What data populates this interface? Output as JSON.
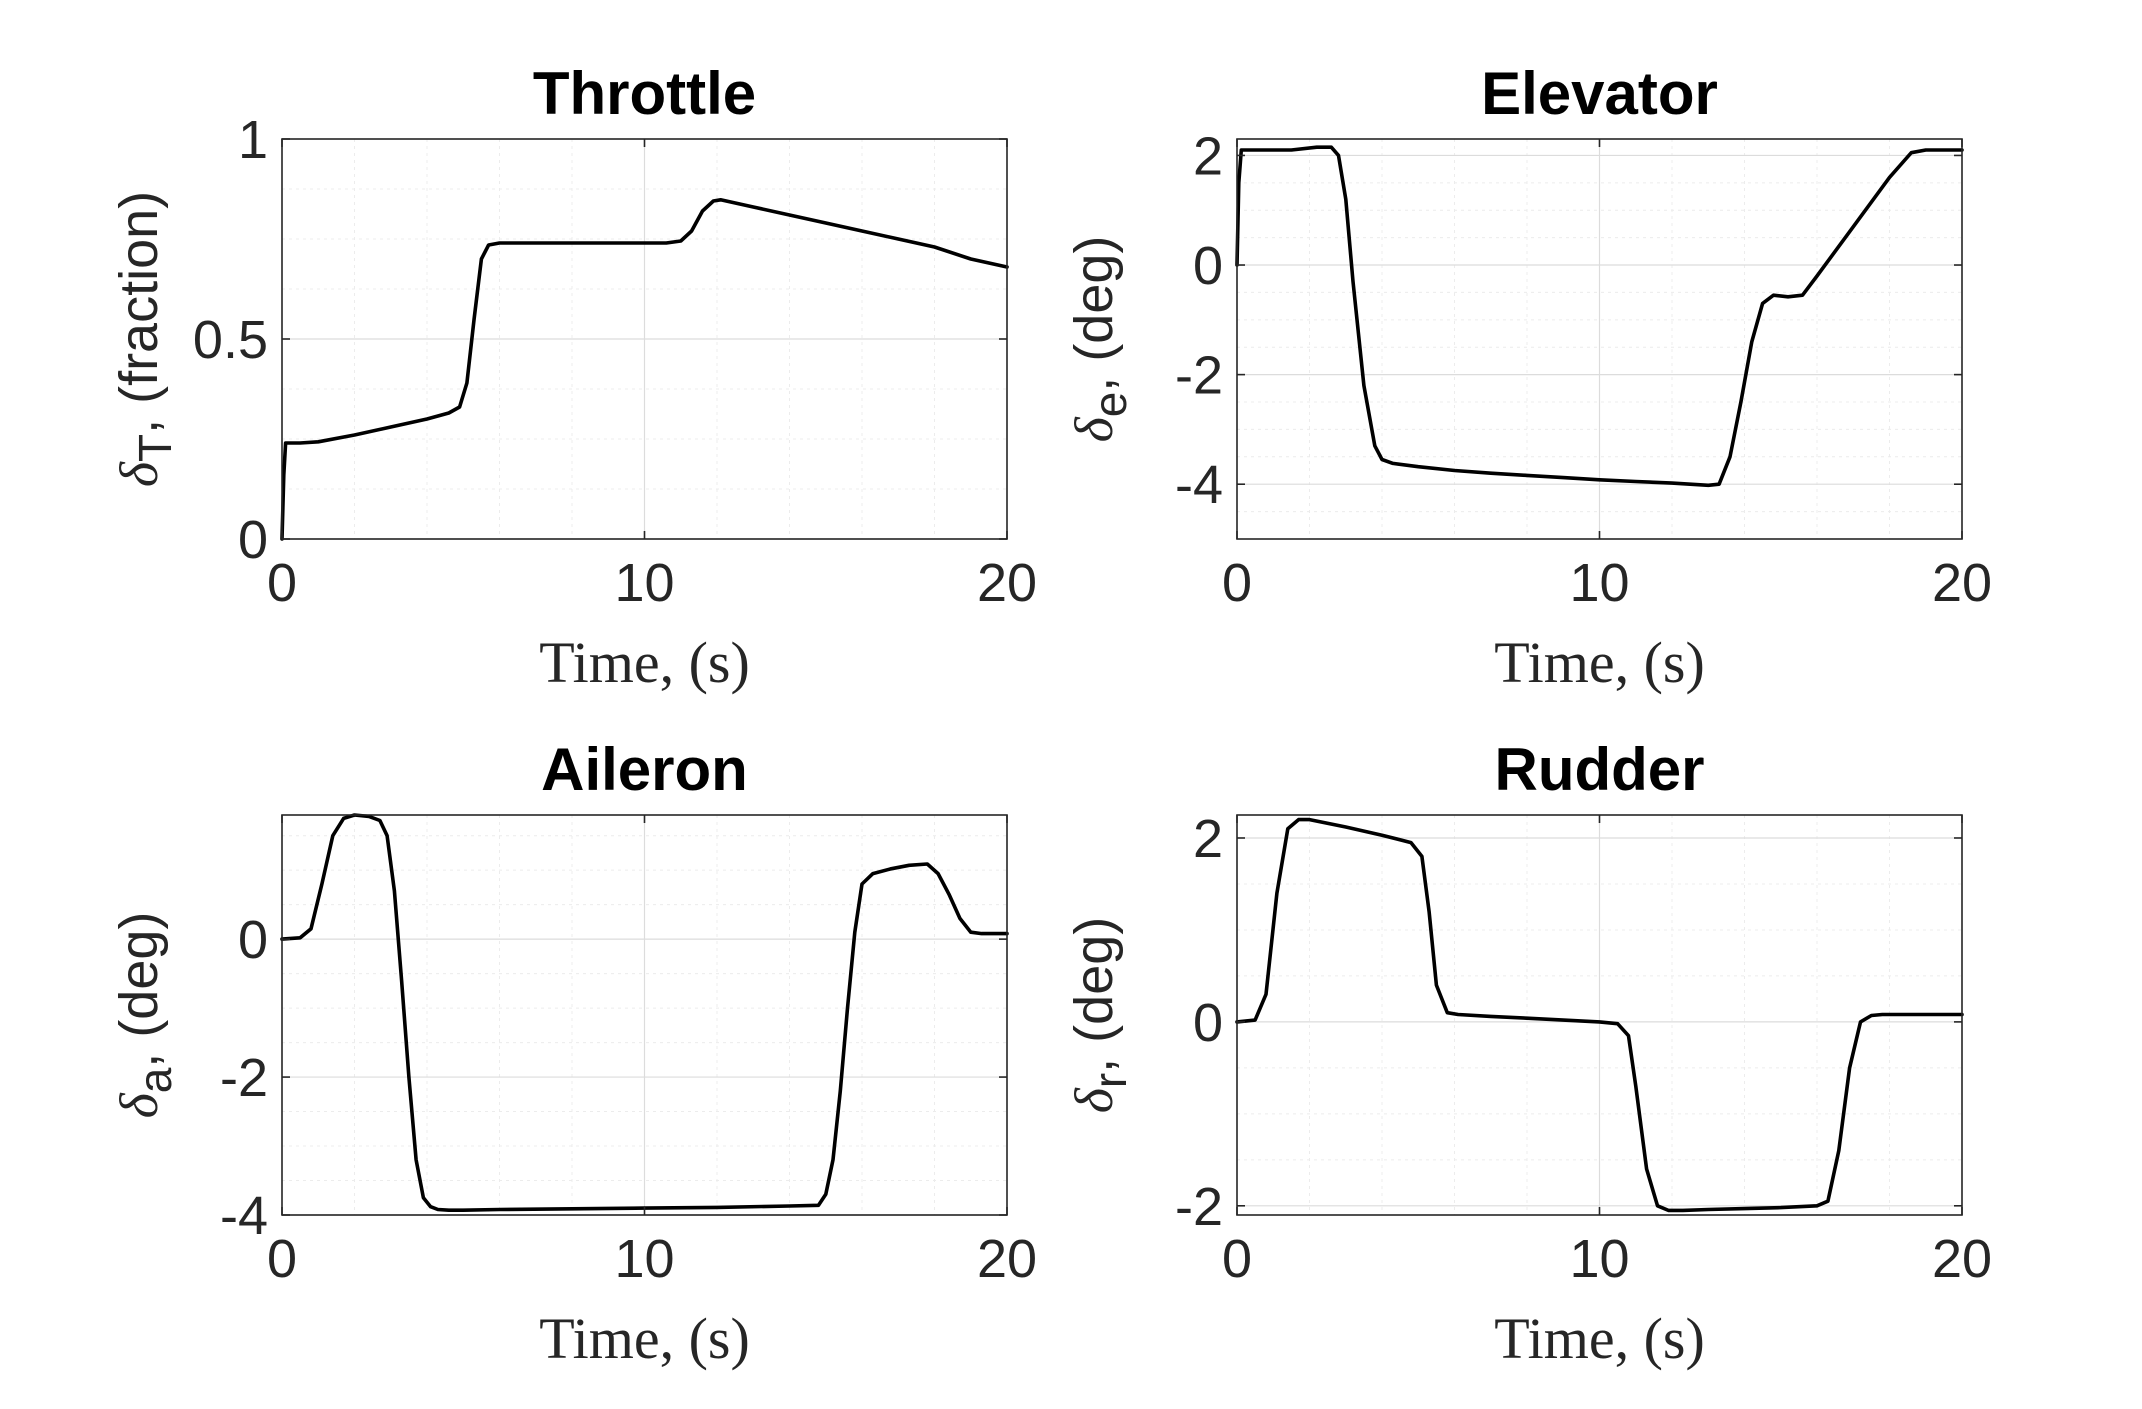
{
  "chart_data": [
    {
      "type": "line",
      "title": "Throttle",
      "xlabel": "Time, (s)",
      "ylabel": {
        "symbol": "δ",
        "sub": "T",
        "rest": ", (fraction)"
      },
      "xlim": [
        0,
        20
      ],
      "ylim": [
        0,
        1
      ],
      "xticks": [
        0,
        10,
        20
      ],
      "xtick_labels": [
        "0",
        "10",
        "20"
      ],
      "yticks": [
        0,
        0.5,
        1
      ],
      "ytick_labels": [
        "0",
        "0.5",
        "1"
      ],
      "grid": true,
      "x": [
        0,
        0.05,
        0.1,
        0.5,
        1,
        2,
        3,
        4,
        4.6,
        4.9,
        5.1,
        5.3,
        5.5,
        5.7,
        6,
        7,
        8,
        9,
        10,
        10.6,
        11,
        11.3,
        11.6,
        11.9,
        12.1,
        13,
        14,
        15,
        16,
        17,
        18,
        19,
        20
      ],
      "y": [
        0,
        0.16,
        0.24,
        0.24,
        0.243,
        0.26,
        0.28,
        0.3,
        0.315,
        0.33,
        0.39,
        0.55,
        0.7,
        0.735,
        0.74,
        0.74,
        0.74,
        0.74,
        0.74,
        0.74,
        0.745,
        0.77,
        0.82,
        0.845,
        0.848,
        0.83,
        0.81,
        0.79,
        0.77,
        0.75,
        0.73,
        0.7,
        0.68
      ]
    },
    {
      "type": "line",
      "title": "Elevator",
      "xlabel": "Time, (s)",
      "ylabel": {
        "symbol": "δ",
        "sub": "e",
        "rest": ", (deg)"
      },
      "xlim": [
        0,
        20
      ],
      "ylim": [
        -5,
        2.3
      ],
      "xticks": [
        0,
        10,
        20
      ],
      "xtick_labels": [
        "0",
        "10",
        "20"
      ],
      "yticks": [
        -4,
        -2,
        0,
        2
      ],
      "ytick_labels": [
        "-4",
        "-2",
        "0",
        "2"
      ],
      "grid": true,
      "x": [
        0,
        0.05,
        0.12,
        0.3,
        1,
        1.5,
        2.2,
        2.6,
        2.8,
        3.0,
        3.2,
        3.5,
        3.8,
        4.0,
        4.3,
        5,
        6,
        7,
        8,
        9,
        10,
        11,
        12,
        13,
        13.3,
        13.6,
        13.9,
        14.2,
        14.5,
        14.8,
        15.2,
        15.6,
        16,
        17,
        18,
        18.6,
        19,
        20
      ],
      "y": [
        0,
        1.5,
        2.1,
        2.1,
        2.1,
        2.1,
        2.15,
        2.15,
        2.0,
        1.2,
        -0.3,
        -2.2,
        -3.3,
        -3.55,
        -3.62,
        -3.68,
        -3.75,
        -3.8,
        -3.84,
        -3.88,
        -3.92,
        -3.95,
        -3.98,
        -4.02,
        -4.0,
        -3.5,
        -2.5,
        -1.4,
        -0.7,
        -0.55,
        -0.58,
        -0.55,
        -0.2,
        0.7,
        1.6,
        2.05,
        2.1,
        2.1
      ]
    },
    {
      "type": "line",
      "title": "Aileron",
      "xlabel": "Time, (s)",
      "ylabel": {
        "symbol": "δ",
        "sub": "a",
        "rest": ", (deg)"
      },
      "xlim": [
        0,
        20
      ],
      "ylim": [
        -4,
        1.8
      ],
      "xticks": [
        0,
        10,
        20
      ],
      "xtick_labels": [
        "0",
        "10",
        "20"
      ],
      "yticks": [
        -4,
        -2,
        0
      ],
      "ytick_labels": [
        "-4",
        "-2",
        "0"
      ],
      "grid": true,
      "x": [
        0,
        0.5,
        0.8,
        1.1,
        1.4,
        1.7,
        2.0,
        2.4,
        2.7,
        2.9,
        3.1,
        3.3,
        3.5,
        3.7,
        3.9,
        4.1,
        4.3,
        4.6,
        5,
        6,
        8,
        10,
        12,
        14,
        14.8,
        15.0,
        15.2,
        15.4,
        15.6,
        15.8,
        16,
        16.3,
        16.8,
        17.3,
        17.8,
        18.1,
        18.4,
        18.7,
        19,
        19.3,
        20
      ],
      "y": [
        0,
        0.02,
        0.15,
        0.8,
        1.5,
        1.75,
        1.8,
        1.78,
        1.72,
        1.5,
        0.7,
        -0.6,
        -2.0,
        -3.2,
        -3.75,
        -3.88,
        -3.92,
        -3.93,
        -3.93,
        -3.92,
        -3.91,
        -3.9,
        -3.89,
        -3.87,
        -3.86,
        -3.7,
        -3.2,
        -2.2,
        -1.0,
        0.1,
        0.8,
        0.95,
        1.02,
        1.07,
        1.09,
        0.95,
        0.65,
        0.3,
        0.1,
        0.08,
        0.08
      ]
    },
    {
      "type": "line",
      "title": "Rudder",
      "xlabel": "Time, (s)",
      "ylabel": {
        "symbol": "δ",
        "sub": "r",
        "rest": ", (deg)"
      },
      "xlim": [
        0,
        20
      ],
      "ylim": [
        -2.1,
        2.25
      ],
      "xticks": [
        0,
        10,
        20
      ],
      "xtick_labels": [
        "0",
        "10",
        "20"
      ],
      "yticks": [
        -2,
        0,
        2
      ],
      "ytick_labels": [
        "-2",
        "0",
        "2"
      ],
      "grid": true,
      "x": [
        0,
        0.5,
        0.8,
        1.1,
        1.4,
        1.7,
        2.0,
        3,
        4,
        4.8,
        5.1,
        5.3,
        5.5,
        5.8,
        6.1,
        7,
        8,
        9,
        10,
        10.5,
        10.8,
        11.0,
        11.3,
        11.6,
        11.9,
        12.3,
        13,
        14,
        15,
        16,
        16.3,
        16.6,
        16.9,
        17.2,
        17.5,
        17.8,
        18,
        19,
        20
      ],
      "y": [
        0,
        0.02,
        0.3,
        1.4,
        2.1,
        2.2,
        2.2,
        2.12,
        2.03,
        1.95,
        1.8,
        1.2,
        0.4,
        0.1,
        0.08,
        0.06,
        0.04,
        0.02,
        0.0,
        -0.02,
        -0.15,
        -0.7,
        -1.6,
        -2.0,
        -2.05,
        -2.05,
        -2.04,
        -2.03,
        -2.02,
        -2.0,
        -1.95,
        -1.4,
        -0.5,
        0.0,
        0.07,
        0.08,
        0.08,
        0.08,
        0.08
      ]
    }
  ]
}
